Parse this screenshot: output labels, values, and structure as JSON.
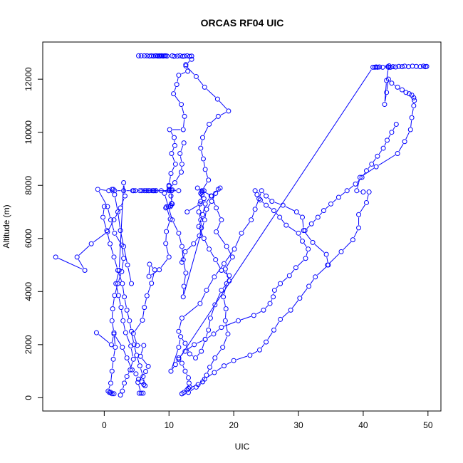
{
  "chart_data": {
    "type": "line",
    "title": "ORCAS RF04 UIC",
    "xlabel": "UIC",
    "ylabel": "Altitude (m)",
    "xlim": [
      -9.5,
      52
    ],
    "ylim": [
      -500,
      13400
    ],
    "xticks": [
      0,
      10,
      20,
      30,
      40,
      50
    ],
    "yticks": [
      0,
      2000,
      4000,
      6000,
      8000,
      10000,
      12000
    ],
    "grid": false,
    "legend": "none",
    "marker": "open-circle",
    "color": "#0000ff",
    "series": [
      {
        "x": [
          5.4,
          6.0,
          5.7,
          5.2,
          6.4,
          6.8,
          5.6,
          6.1,
          5.1,
          4.5,
          5.9,
          6.2,
          6.6,
          7.3,
          7.8,
          7.0,
          6.9,
          8.5,
          10.0,
          9.5,
          9.6,
          10.2,
          9.6,
          10.3,
          10.4,
          10.4,
          10.0,
          10.0,
          10.5,
          11.5,
          8.8,
          10.0,
          5.5,
          6.8,
          8.0
        ],
        "y": [
          170,
          170,
          170,
          580,
          990,
          1180,
          1560,
          1970,
          1970,
          2420,
          2920,
          3400,
          3840,
          4310,
          4820,
          5030,
          4570,
          4820,
          5300,
          5810,
          6260,
          6730,
          7190,
          7240,
          7320,
          7800,
          7960,
          7840,
          7830,
          7800,
          7800,
          7800,
          7800,
          7800,
          7800
        ]
      },
      {
        "x": [
          12.0,
          12.3,
          12.8,
          13.0,
          13.2,
          13.1,
          13.0,
          12.5,
          12.0,
          11.5,
          11.0,
          10.3,
          11.5,
          11.8,
          12.5,
          13.2,
          14.1,
          15.0,
          15.6,
          16.1,
          16.4,
          17.1,
          18.1,
          19.3,
          18.7,
          19.8,
          18.9,
          17.3,
          18.1,
          17.3,
          16.6,
          14.4,
          15.4,
          15.1,
          14.9,
          15.1,
          15.4,
          14.8,
          12.8
        ],
        "y": [
          150,
          200,
          300,
          350,
          400,
          550,
          750,
          1000,
          1300,
          1500,
          1250,
          1000,
          1900,
          2300,
          2050,
          1650,
          1500,
          1750,
          2200,
          2550,
          3000,
          3500,
          4050,
          4400,
          4850,
          5300,
          5700,
          6250,
          6700,
          7150,
          7600,
          7900,
          7800,
          7750,
          7700,
          7650,
          7500,
          7300,
          7000
        ]
      },
      {
        "x": [
          13.0,
          14.2,
          15.2,
          15.8,
          16.3,
          17.1,
          18.3,
          19.1,
          18.7,
          18.8,
          18.4,
          18.9,
          19.3,
          18.1,
          17.2,
          16.2,
          15.4,
          14.6,
          15.2,
          15.6,
          16.5,
          17.6,
          17.9,
          17.2,
          16.6,
          15.8,
          15.5,
          12.2,
          12.3,
          12.6,
          12.2,
          12.0,
          11.5,
          10.5,
          9.9,
          9.3,
          10.9,
          11.9,
          12.0,
          11.7,
          12.3
        ],
        "y": [
          200,
          400,
          600,
          850,
          1150,
          1500,
          1900,
          2400,
          2900,
          3350,
          3800,
          4300,
          4600,
          4800,
          5200,
          5600,
          6000,
          6450,
          6900,
          7300,
          7600,
          7850,
          7900,
          7700,
          7400,
          7100,
          6700,
          3800,
          4200,
          4700,
          5200,
          5700,
          6200,
          6700,
          7200,
          7700,
          8100,
          8500,
          8800,
          9200,
          9600
        ]
      },
      {
        "x": [
          12.0,
          13.0,
          14.5,
          15.5,
          17.0,
          18.5,
          20.0,
          22.5,
          24.0,
          25.0,
          26.2,
          27.2,
          28.8,
          30.2,
          31.6,
          32.6,
          34.6,
          34.3,
          32.2,
          30.8,
          30.6,
          29.7,
          27.6,
          25.9,
          25.0,
          24.3,
          23.9,
          23.3,
          22.7,
          21.2,
          20.1,
          18.5,
          17.0,
          15.8,
          14.8,
          12.0,
          11.5
        ],
        "y": [
          150,
          350,
          500,
          700,
          950,
          1200,
          1400,
          1600,
          1800,
          2100,
          2550,
          2950,
          3300,
          3750,
          4200,
          4550,
          5000,
          5400,
          5850,
          6300,
          6800,
          7000,
          7250,
          7400,
          7600,
          7800,
          7500,
          7100,
          6700,
          6200,
          5600,
          5050,
          4550,
          4050,
          3550,
          3000,
          2500
        ]
      },
      {
        "x": [
          11.5,
          12.5,
          13.9,
          15.6,
          16.9,
          18.1,
          20.7,
          23.1,
          24.6,
          25.6,
          26.1,
          26.3,
          27.2,
          28.6,
          29.6,
          31.1,
          31.5,
          30.6,
          30.0,
          28.1,
          27.1,
          26.2,
          25.0,
          24.1,
          23.6,
          23.3
        ],
        "y": [
          1500,
          1750,
          2000,
          2200,
          2400,
          2650,
          2900,
          3100,
          3300,
          3550,
          3800,
          4050,
          4300,
          4600,
          4900,
          5250,
          5600,
          5900,
          6200,
          6500,
          6800,
          7050,
          7250,
          7450,
          7650,
          7800
        ]
      },
      {
        "x": [
          31.0,
          32.0,
          33.0,
          33.9,
          35.0,
          36.2,
          37.5,
          38.8,
          39.8,
          40.5,
          41.3,
          42.2,
          43.1,
          43.7,
          44.4,
          45.1
        ],
        "y": [
          6300,
          6550,
          6800,
          7050,
          7300,
          7550,
          7800,
          8050,
          8300,
          8550,
          8800,
          9100,
          9400,
          9700,
          10000,
          10300
        ]
      },
      {
        "x": [
          34.5,
          36.6,
          38.4,
          39.3,
          39.3,
          40.5,
          40.9,
          40.0,
          39.0,
          39.5,
          42.0,
          45.3,
          46.4,
          47.3,
          47.5,
          47.8,
          47.9,
          47.8,
          47.5,
          47.1,
          46.6,
          46.0,
          45.3,
          44.4,
          43.9,
          43.6,
          43.3,
          43.6,
          43.9,
          44.0,
          43.9
        ],
        "y": [
          5000,
          5500,
          5950,
          6400,
          6900,
          7350,
          7750,
          7750,
          7800,
          8300,
          8700,
          9200,
          9650,
          10100,
          10550,
          11000,
          11200,
          11300,
          11400,
          11450,
          11500,
          11600,
          11700,
          11850,
          12000,
          11500,
          11050,
          11950,
          12450,
          12500,
          12450
        ]
      },
      {
        "x": [
          11.5,
          41.5,
          41.8,
          42.0,
          42.2,
          42.5,
          43.0,
          43.8,
          44.2,
          44.6,
          45.0,
          45.5,
          46.0,
          46.4,
          47.0,
          47.6,
          48.2,
          48.8,
          49.3,
          49.6,
          49.8
        ],
        "y": [
          1450,
          12450,
          12450,
          12460,
          12450,
          12460,
          12450,
          12470,
          12450,
          12470,
          12460,
          12480,
          12470,
          12490,
          12470,
          12490,
          12480,
          12470,
          12490,
          12470,
          12480
        ]
      },
      {
        "x": [
          5.3,
          5.7,
          6.2,
          6.6,
          7.0,
          7.3,
          7.6,
          7.9,
          8.1,
          8.3,
          8.5,
          8.6,
          8.8,
          8.9,
          9.1,
          9.3,
          9.5,
          9.7,
          10.5,
          10.8,
          11.3,
          11.7,
          12.1,
          12.4,
          12.8,
          13.2,
          13.5
        ],
        "y": [
          12880,
          12880,
          12880,
          12880,
          12870,
          12880,
          12870,
          12880,
          12880,
          12870,
          12880,
          12870,
          12880,
          12880,
          12870,
          12880,
          12880,
          12870,
          12880,
          12860,
          12870,
          12880,
          12860,
          12870,
          12880,
          12860,
          12870
        ]
      },
      {
        "x": [
          13.5,
          12.6,
          12.9,
          11.5,
          11.2,
          10.7,
          11.9,
          12.4,
          12.2,
          10.1,
          10.8,
          10.9,
          10.4,
          11.0,
          10.3,
          10.0,
          10.3,
          10.5,
          10.2,
          9.5
        ],
        "y": [
          12750,
          12550,
          12300,
          12150,
          11800,
          11450,
          11050,
          10600,
          10100,
          10100,
          9800,
          9500,
          9200,
          8800,
          8450,
          8000,
          7600,
          7300,
          7200,
          7150
        ]
      },
      {
        "x": [
          12.6,
          14.2,
          15.5,
          17.5,
          19.2,
          17.6,
          16.2,
          15.2,
          14.9,
          15.3,
          15.6,
          16.1,
          15.1,
          14.9,
          14.6,
          14.9,
          15.0,
          14.7,
          13.8,
          12.5,
          12.0
        ],
        "y": [
          12500,
          12100,
          11700,
          11250,
          10800,
          10600,
          10300,
          9800,
          9400,
          9000,
          8600,
          8200,
          7800,
          7400,
          7000,
          6700,
          6400,
          6100,
          5800,
          5500,
          5100
        ]
      },
      {
        "x": [
          1.0,
          1.5,
          1.2,
          0.8,
          0.6,
          1.0,
          1.2,
          1.4,
          1.7,
          1.5,
          1.2,
          1.3,
          1.6,
          2.1,
          2.7,
          3.0,
          2.7,
          1.6,
          1.0,
          0.5,
          -1.0,
          0.7,
          1.6,
          2.1,
          2.5,
          3.0,
          3.6,
          4.2
        ],
        "y": [
          200,
          150,
          150,
          200,
          250,
          550,
          1000,
          1450,
          1900,
          2450,
          2900,
          3350,
          3850,
          4300,
          4750,
          5250,
          5750,
          6200,
          6700,
          7200,
          7850,
          7800,
          7650,
          7000,
          6300,
          5700,
          5000,
          4300
        ]
      },
      {
        "x": [
          -7.5,
          -3.0,
          -4.2,
          -2.0,
          0.5,
          1.5,
          2.5,
          3.2,
          3.0,
          2.3,
          1.8,
          2.2,
          2.6,
          2.9,
          3.3,
          4.1,
          4.5,
          4.0,
          3.5,
          3.1,
          2.8,
          2.5
        ],
        "y": [
          5300,
          4800,
          5300,
          5800,
          6250,
          6700,
          7150,
          7600,
          8100,
          4800,
          4300,
          3850,
          3400,
          2900,
          2450,
          1950,
          1450,
          1050,
          800,
          550,
          250,
          100
        ]
      },
      {
        "x": [
          -1.2,
          1.1,
          1.5,
          2.8,
          3.5,
          4.3,
          4.9,
          5.3,
          5.8,
          6.1,
          6.3,
          6.0,
          5.5,
          5.0,
          4.6,
          4.2,
          3.9,
          3.5,
          3.1,
          2.8,
          2.1,
          1.5,
          0.9,
          0.4,
          -0.2,
          0.0
        ],
        "y": [
          2450,
          2000,
          2400,
          1900,
          1500,
          1050,
          900,
          700,
          600,
          500,
          450,
          800,
          1200,
          1600,
          2000,
          2500,
          2900,
          3300,
          3800,
          4300,
          4800,
          5300,
          5800,
          6300,
          6800,
          7200
        ]
      },
      {
        "x": [
          1.2,
          1.4,
          1.6,
          3.0,
          4.4,
          4.5,
          4.8,
          5.8,
          6.2,
          6.5,
          7.0,
          7.4,
          7.6,
          7.7,
          8.0
        ],
        "y": [
          7850,
          7850,
          7800,
          7800,
          7800,
          7800,
          7800,
          7800,
          7800,
          7800,
          7800,
          7800,
          7800,
          7800,
          7800
        ]
      }
    ]
  }
}
